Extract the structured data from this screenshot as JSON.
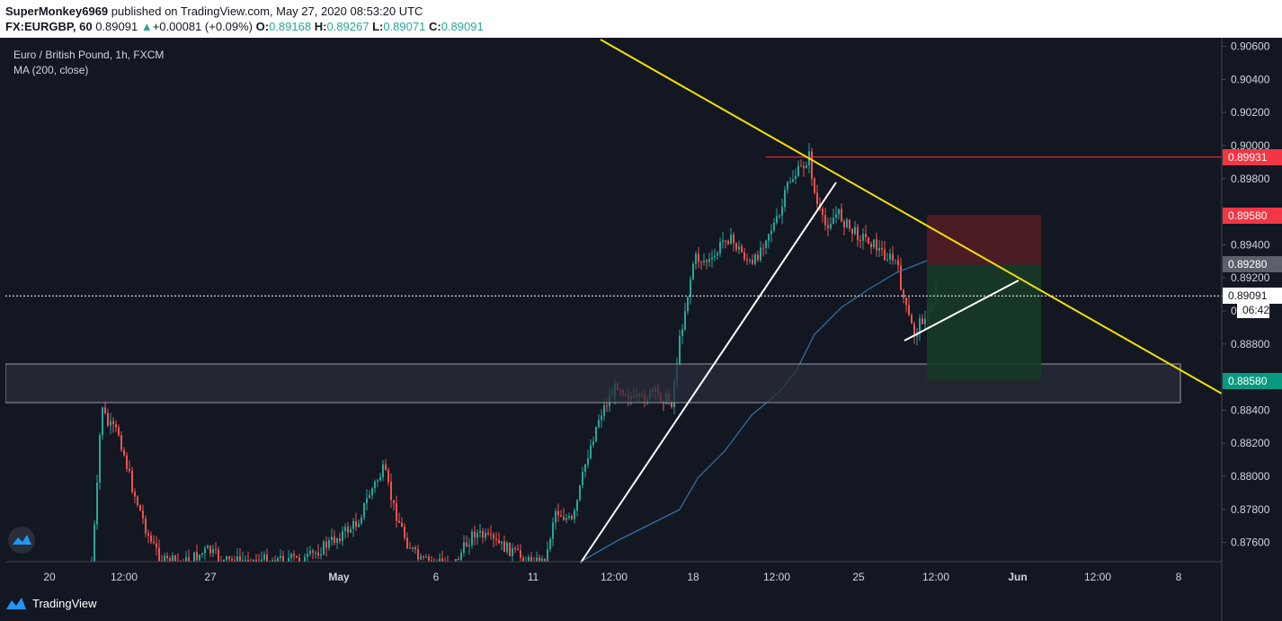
{
  "header": {
    "author": "SuperMonkey6969",
    "published_text": "published on TradingView.com, May 27, 2020 08:53:20 UTC",
    "symbol": "FX:EURGBP, 60",
    "last": "0.89091",
    "change_arrow": "▲",
    "change": "+0.00081 (+0.09%)",
    "o_label": "O:",
    "o_value": "0.89168",
    "h_label": "H:",
    "h_value": "0.89267",
    "l_label": "L:",
    "l_value": "0.89071",
    "c_label": "C:",
    "c_value": "0.89091"
  },
  "legend": {
    "title": "Euro / British Pound, 1h, FXCM",
    "indicator": "MA (200, close)"
  },
  "price_axis": {
    "ticks": [
      "0.90600",
      "0.90400",
      "0.90200",
      "0.90000",
      "0.89800",
      "0.89600",
      "0.89400",
      "0.89200",
      "0.89000",
      "0.88800",
      "0.88600",
      "0.88400",
      "0.88200",
      "0.88000",
      "0.87800",
      "0.87600"
    ],
    "labels": [
      {
        "text": "0.89931",
        "color": "#f23645"
      },
      {
        "text": "0.89580",
        "color": "#f23645"
      },
      {
        "text": "0.89280",
        "color": "#5d606b"
      },
      {
        "text": "0.89091",
        "color": "#ffffff"
      },
      {
        "text": "06:42",
        "color": "#ffffff"
      },
      {
        "text": "0.88580",
        "color": "#089981"
      }
    ]
  },
  "time_axis": {
    "ticks": [
      {
        "label": "20",
        "bold": false
      },
      {
        "label": "12:00",
        "bold": false
      },
      {
        "label": "27",
        "bold": false
      },
      {
        "label": "May",
        "bold": true
      },
      {
        "label": "6",
        "bold": false
      },
      {
        "label": "11",
        "bold": false
      },
      {
        "label": "12:00",
        "bold": false
      },
      {
        "label": "18",
        "bold": false
      },
      {
        "label": "12:00",
        "bold": false
      },
      {
        "label": "25",
        "bold": false
      },
      {
        "label": "12:00",
        "bold": false
      },
      {
        "label": "Jun",
        "bold": true
      },
      {
        "label": "12:00",
        "bold": false
      },
      {
        "label": "8",
        "bold": false
      }
    ]
  },
  "trade": {
    "entry": 0.8928,
    "stop": 0.8958,
    "target": 0.8858,
    "resistance_level": 0.89931
  },
  "colors": {
    "background": "#131722",
    "up_candle": "#26a69a",
    "down_candle": "#ef5350",
    "trendline": "#f5e100",
    "ma": "#2f6f9f",
    "stop_zone": "#5a1e26",
    "target_zone": "#173b26",
    "support_zone": "#2a2e39"
  },
  "footer": {
    "brand": "TradingView",
    "logo_icon": "tradingview-logo-icon"
  }
}
